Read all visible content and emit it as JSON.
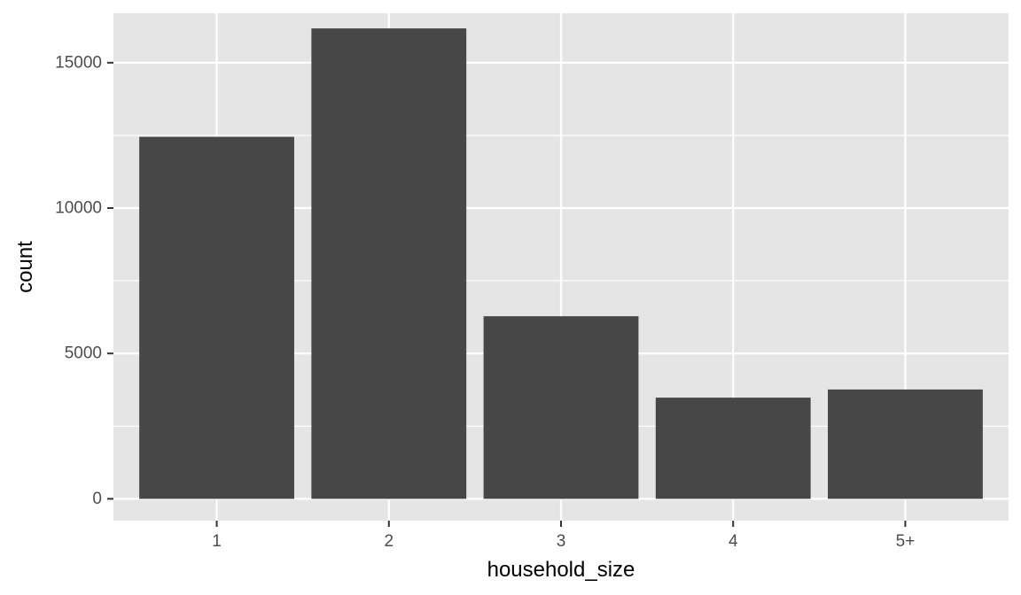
{
  "chart_data": {
    "type": "bar",
    "categories": [
      "1",
      "2",
      "3",
      "4",
      "5+"
    ],
    "values": [
      12450,
      16180,
      6280,
      3480,
      3760
    ],
    "title": "",
    "xlabel": "household_size",
    "ylabel": "count",
    "ylim": [
      -750,
      16700
    ],
    "y_ticks": [
      0,
      5000,
      10000,
      15000
    ],
    "y_tick_labels": [
      "0",
      "5000",
      "10000",
      "15000"
    ],
    "grid": true,
    "legend": "none",
    "colors": {
      "bar": "#474747",
      "panel_background": "#E5E5E5",
      "grid_line": "#FFFFFF",
      "tick_label": "#4D4D4D",
      "tick_mark": "#333333",
      "axis_title": "#000000"
    }
  }
}
